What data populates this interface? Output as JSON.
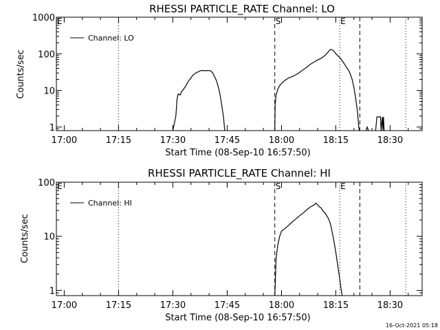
{
  "footer": {
    "timestamp": "16-Oct-2021 05:18"
  },
  "chart_data": [
    {
      "type": "line",
      "title": "RHESSI PARTICLE_RATE Channel: LO",
      "xlabel": "Start Time (08-Sep-10 16:57:50)",
      "ylabel": "Counts/sec",
      "yscale": "log",
      "xlim": [
        "16:57:50",
        "18:38:50"
      ],
      "ylim": [
        0.8,
        1000
      ],
      "xticks": [
        "17:00",
        "17:15",
        "17:30",
        "17:45",
        "18:00",
        "18:15",
        "18:30"
      ],
      "yticks": [
        "1",
        "10",
        "100",
        "1000"
      ],
      "legend": {
        "label": "Channel: LO",
        "position": "top-left"
      },
      "markers": {
        "dashed": [
          "17:58:09",
          "18:21:38"
        ],
        "dotted": [
          "17:14:58",
          "18:16:05",
          "18:34:18"
        ],
        "labels": [
          {
            "text": "E",
            "at": "16:57:50"
          },
          {
            "text": "S",
            "at": "17:58:09"
          },
          {
            "text": "E",
            "at": "18:16:05"
          }
        ]
      },
      "series": [
        {
          "segments": [
            [
              [
                "17:30:00",
                0.8
              ],
              [
                "17:30:50",
                2.0
              ],
              [
                "17:31:10",
                6.0
              ],
              [
                "17:31:30",
                8.0
              ],
              [
                "17:32:00",
                7.5
              ],
              [
                "17:32:20",
                9.0
              ],
              [
                "17:33:00",
                11.0
              ],
              [
                "17:33:30",
                13.0
              ],
              [
                "17:34:00",
                16.0
              ],
              [
                "17:34:30",
                19.0
              ],
              [
                "17:35:00",
                22.0
              ],
              [
                "17:35:30",
                26.0
              ],
              [
                "17:36:00",
                28.0
              ],
              [
                "17:36:30",
                31.0
              ],
              [
                "17:37:00",
                32.0
              ],
              [
                "17:37:30",
                34.0
              ],
              [
                "17:38:00",
                35.0
              ],
              [
                "17:38:30",
                35.0
              ],
              [
                "17:39:00",
                34.5
              ],
              [
                "17:39:30",
                35.0
              ],
              [
                "17:40:00",
                35.0
              ],
              [
                "17:40:30",
                34.0
              ],
              [
                "17:41:00",
                30.0
              ],
              [
                "17:41:30",
                24.0
              ],
              [
                "17:42:00",
                19.0
              ],
              [
                "17:42:30",
                13.0
              ],
              [
                "17:43:00",
                8.0
              ],
              [
                "17:43:30",
                4.0
              ],
              [
                "17:44:00",
                1.8
              ],
              [
                "17:44:20",
                0.8
              ]
            ],
            [
              [
                "17:58:09",
                0.8
              ],
              [
                "17:58:15",
                4.0
              ],
              [
                "17:58:30",
                7.5
              ],
              [
                "17:59:00",
                11.0
              ],
              [
                "17:59:30",
                13.5
              ],
              [
                "18:00:00",
                15.5
              ],
              [
                "18:01:00",
                19.0
              ],
              [
                "18:02:00",
                22.0
              ],
              [
                "18:03:00",
                24.0
              ],
              [
                "18:04:00",
                27.0
              ],
              [
                "18:05:00",
                31.0
              ],
              [
                "18:06:00",
                37.0
              ],
              [
                "18:07:00",
                43.0
              ],
              [
                "18:08:00",
                52.0
              ],
              [
                "18:09:00",
                60.0
              ],
              [
                "18:10:00",
                68.0
              ],
              [
                "18:11:00",
                76.0
              ],
              [
                "18:12:00",
                90.0
              ],
              [
                "18:13:00",
                115.0
              ],
              [
                "18:13:30",
                132.0
              ],
              [
                "18:14:00",
                128.0
              ],
              [
                "18:14:30",
                118.0
              ],
              [
                "18:15:00",
                100.0
              ],
              [
                "18:15:30",
                90.0
              ],
              [
                "18:16:00",
                80.0
              ],
              [
                "18:16:30",
                70.0
              ],
              [
                "18:17:00",
                60.0
              ],
              [
                "18:17:30",
                50.0
              ],
              [
                "18:18:00",
                42.0
              ],
              [
                "18:18:30",
                36.0
              ],
              [
                "18:19:00",
                28.0
              ],
              [
                "18:19:30",
                20.0
              ],
              [
                "18:20:00",
                12.0
              ],
              [
                "18:20:30",
                6.0
              ],
              [
                "18:21:00",
                2.5
              ],
              [
                "18:21:20",
                1.0
              ],
              [
                "18:21:30",
                0.8
              ]
            ],
            [
              [
                "18:23:20",
                0.8
              ],
              [
                "18:23:40",
                1.0
              ],
              [
                "18:24:00",
                0.8
              ]
            ],
            [
              [
                "18:26:00",
                0.8
              ],
              [
                "18:26:20",
                1.9
              ],
              [
                "18:27:20",
                1.9
              ],
              [
                "18:27:30",
                0.8
              ],
              [
                "18:27:50",
                1.9
              ],
              [
                "18:28:00",
                0.8
              ],
              [
                "18:28:10",
                1.9
              ],
              [
                "18:28:20",
                0.8
              ]
            ]
          ]
        }
      ]
    },
    {
      "type": "line",
      "title": "RHESSI PARTICLE_RATE Channel: HI",
      "xlabel": "Start Time (08-Sep-10 16:57:50)",
      "ylabel": "Counts/sec",
      "yscale": "log",
      "xlim": [
        "16:57:50",
        "18:38:50"
      ],
      "ylim": [
        0.8,
        100
      ],
      "xticks": [
        "17:00",
        "17:15",
        "17:30",
        "17:45",
        "18:00",
        "18:15",
        "18:30"
      ],
      "yticks": [
        "1",
        "10",
        "100"
      ],
      "legend": {
        "label": "Channel: HI",
        "position": "top-left"
      },
      "markers": {
        "dashed": [
          "17:58:09",
          "18:21:38"
        ],
        "dotted": [
          "17:14:58",
          "18:16:05",
          "18:34:18"
        ],
        "labels": [
          {
            "text": "E",
            "at": "16:57:50"
          },
          {
            "text": "S",
            "at": "17:58:09"
          },
          {
            "text": "E",
            "at": "18:16:05"
          }
        ]
      },
      "series": [
        {
          "segments": [
            [
              [
                "17:58:09",
                0.8
              ],
              [
                "17:58:15",
                1.2
              ],
              [
                "17:58:30",
                4.0
              ],
              [
                "17:59:00",
                7.0
              ],
              [
                "17:59:30",
                10.0
              ],
              [
                "18:00:00",
                12.5
              ],
              [
                "18:01:00",
                14.0
              ],
              [
                "18:02:00",
                16.0
              ],
              [
                "18:03:00",
                18.5
              ],
              [
                "18:04:00",
                21.0
              ],
              [
                "18:05:00",
                24.0
              ],
              [
                "18:06:00",
                27.0
              ],
              [
                "18:07:00",
                31.0
              ],
              [
                "18:08:00",
                35.0
              ],
              [
                "18:09:00",
                38.0
              ],
              [
                "18:09:30",
                41.0
              ],
              [
                "18:10:00",
                38.0
              ],
              [
                "18:10:30",
                35.0
              ],
              [
                "18:11:00",
                33.0
              ],
              [
                "18:11:30",
                29.0
              ],
              [
                "18:12:00",
                27.0
              ],
              [
                "18:12:30",
                24.0
              ],
              [
                "18:13:00",
                21.0
              ],
              [
                "18:13:30",
                17.0
              ],
              [
                "18:14:00",
                12.0
              ],
              [
                "18:14:30",
                8.0
              ],
              [
                "18:15:00",
                5.0
              ],
              [
                "18:15:30",
                3.0
              ],
              [
                "18:16:00",
                1.8
              ],
              [
                "18:16:30",
                1.0
              ],
              [
                "18:16:45",
                0.8
              ]
            ]
          ]
        }
      ]
    }
  ]
}
